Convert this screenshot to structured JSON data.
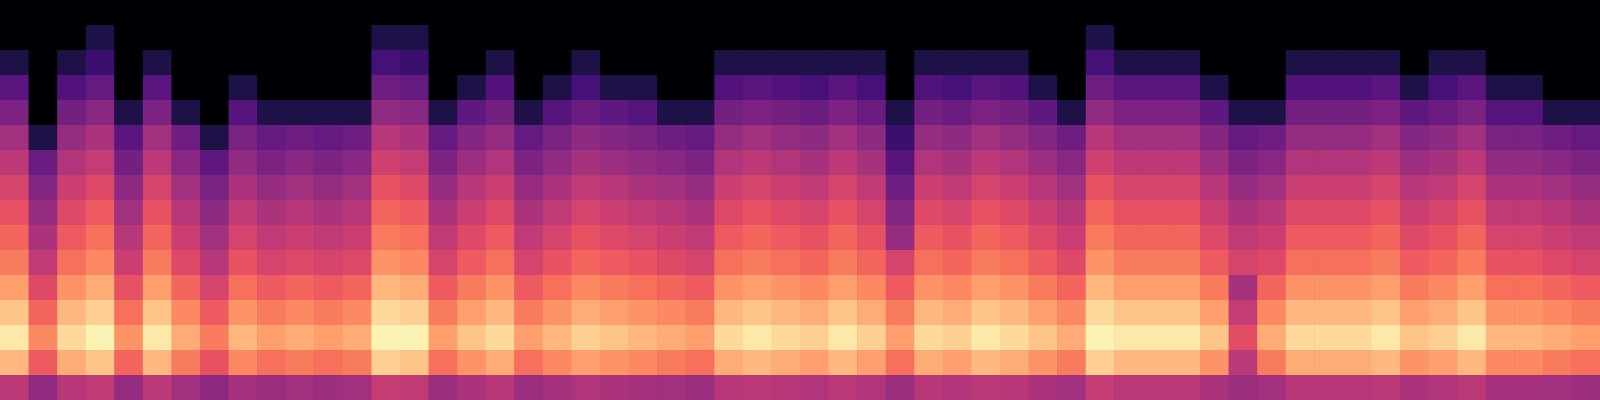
{
  "chart_data": {
    "type": "heatmap",
    "tick_labels": false,
    "zlim": [
      -80,
      0
    ],
    "z": [
      [
        -80,
        -80,
        -80,
        -80,
        -80,
        -80,
        -80,
        -80,
        -80,
        -80,
        -80,
        -80,
        -80,
        -80,
        -80,
        -80,
        -80,
        -80,
        -80,
        -80,
        -80,
        -80,
        -80,
        -80,
        -80,
        -80,
        -80,
        -80,
        -80,
        -80,
        -80,
        -80,
        -80,
        -80,
        -80,
        -80,
        -80,
        -80,
        -80,
        -80,
        -80,
        -80,
        -80,
        -80,
        -80,
        -80,
        -80,
        -80,
        -80,
        -80,
        -80,
        -80,
        -80,
        -80,
        -80,
        -80
      ],
      [
        -80,
        -80,
        -80,
        -70,
        -80,
        -80,
        -80,
        -80,
        -80,
        -80,
        -80,
        -80,
        -80,
        -70,
        -70,
        -80,
        -80,
        -80,
        -80,
        -80,
        -80,
        -80,
        -80,
        -80,
        -80,
        -80,
        -80,
        -80,
        -80,
        -80,
        -80,
        -80,
        -80,
        -80,
        -80,
        -80,
        -80,
        -80,
        -70,
        -80,
        -80,
        -80,
        -80,
        -80,
        -80,
        -80,
        -80,
        -80,
        -80,
        -80,
        -80,
        -80,
        -80,
        -80,
        -80,
        -80
      ],
      [
        -70,
        -80,
        -70,
        -64,
        -80,
        -70,
        -80,
        -80,
        -80,
        -80,
        -80,
        -80,
        -80,
        -62,
        -64,
        -80,
        -80,
        -70,
        -80,
        -80,
        -70,
        -80,
        -80,
        -80,
        -80,
        -70,
        -70,
        -70,
        -70,
        -70,
        -70,
        -80,
        -70,
        -70,
        -70,
        -70,
        -80,
        -80,
        -62,
        -70,
        -70,
        -70,
        -80,
        -80,
        -80,
        -70,
        -70,
        -70,
        -70,
        -80,
        -70,
        -70,
        -80,
        -80,
        -80,
        -80
      ],
      [
        -58,
        -80,
        -60,
        -56,
        -80,
        -58,
        -80,
        -80,
        -70,
        -80,
        -80,
        -80,
        -80,
        -54,
        -56,
        -80,
        -70,
        -60,
        -80,
        -70,
        -62,
        -70,
        -70,
        -80,
        -80,
        -60,
        -58,
        -60,
        -62,
        -58,
        -62,
        -80,
        -60,
        -62,
        -58,
        -60,
        -70,
        -80,
        -54,
        -58,
        -58,
        -58,
        -70,
        -80,
        -80,
        -60,
        -60,
        -60,
        -58,
        -70,
        -62,
        -58,
        -70,
        -70,
        -80,
        -80
      ],
      [
        -51,
        -80,
        -53,
        -49,
        -70,
        -51,
        -70,
        -80,
        -59,
        -70,
        -70,
        -70,
        -70,
        -47,
        -49,
        -70,
        -57,
        -53,
        -70,
        -59,
        -55,
        -57,
        -59,
        -70,
        -70,
        -53,
        -51,
        -53,
        -55,
        -51,
        -55,
        -70,
        -53,
        -55,
        -51,
        -53,
        -57,
        -70,
        -47,
        -51,
        -51,
        -51,
        -57,
        -70,
        -70,
        -53,
        -53,
        -53,
        -51,
        -57,
        -55,
        -51,
        -59,
        -59,
        -70,
        -70
      ],
      [
        -44,
        -70,
        -46,
        -42,
        -58,
        -44,
        -54,
        -70,
        -52,
        -56,
        -54,
        -56,
        -54,
        -40,
        -42,
        -56,
        -50,
        -46,
        -56,
        -52,
        -48,
        -50,
        -52,
        -54,
        -56,
        -46,
        -44,
        -46,
        -48,
        -44,
        -48,
        -64,
        -46,
        -48,
        -44,
        -46,
        -50,
        -54,
        -40,
        -44,
        -44,
        -44,
        -50,
        -56,
        -54,
        -46,
        -46,
        -46,
        -44,
        -50,
        -48,
        -44,
        -52,
        -52,
        -54,
        -56
      ],
      [
        -39,
        -55,
        -41,
        -37,
        -53,
        -39,
        -49,
        -57,
        -47,
        -51,
        -49,
        -51,
        -49,
        -35,
        -37,
        -51,
        -45,
        -41,
        -51,
        -47,
        -43,
        -45,
        -47,
        -49,
        -51,
        -41,
        -39,
        -41,
        -43,
        -39,
        -43,
        -59,
        -41,
        -43,
        -39,
        -41,
        -45,
        -49,
        -35,
        -39,
        -39,
        -39,
        -45,
        -51,
        -49,
        -41,
        -41,
        -41,
        -39,
        -45,
        -43,
        -39,
        -47,
        -47,
        -49,
        -51
      ],
      [
        -34,
        -50,
        -36,
        -32,
        -48,
        -34,
        -44,
        -52,
        -42,
        -46,
        -44,
        -46,
        -44,
        -30,
        -32,
        -46,
        -40,
        -36,
        -46,
        -42,
        -38,
        -40,
        -42,
        -44,
        -46,
        -36,
        -34,
        -36,
        -38,
        -34,
        -38,
        -54,
        -36,
        -38,
        -34,
        -36,
        -40,
        -44,
        -30,
        -34,
        -34,
        -34,
        -40,
        -46,
        -44,
        -36,
        -36,
        -36,
        -34,
        -40,
        -38,
        -34,
        -42,
        -42,
        -44,
        -46
      ],
      [
        -30,
        -46,
        -32,
        -28,
        -44,
        -30,
        -40,
        -48,
        -38,
        -42,
        -40,
        -42,
        -40,
        -26,
        -28,
        -42,
        -36,
        -32,
        -42,
        -38,
        -34,
        -36,
        -38,
        -40,
        -42,
        -32,
        -30,
        -32,
        -34,
        -30,
        -34,
        -50,
        -32,
        -34,
        -30,
        -32,
        -36,
        -40,
        -26,
        -30,
        -30,
        -30,
        -36,
        -42,
        -40,
        -32,
        -32,
        -32,
        -30,
        -36,
        -34,
        -30,
        -38,
        -38,
        -40,
        -42
      ],
      [
        -26,
        -42,
        -28,
        -24,
        -40,
        -26,
        -36,
        -44,
        -34,
        -38,
        -36,
        -38,
        -36,
        -22,
        -24,
        -38,
        -32,
        -28,
        -38,
        -34,
        -30,
        -32,
        -34,
        -36,
        -38,
        -28,
        -26,
        -28,
        -30,
        -26,
        -30,
        -46,
        -28,
        -30,
        -26,
        -28,
        -32,
        -36,
        -22,
        -26,
        -26,
        -26,
        -32,
        -38,
        -36,
        -28,
        -28,
        -28,
        -26,
        -32,
        -30,
        -26,
        -34,
        -34,
        -36,
        -38
      ],
      [
        -22,
        -38,
        -24,
        -20,
        -36,
        -22,
        -32,
        -40,
        -30,
        -34,
        -32,
        -34,
        -32,
        -18,
        -20,
        -34,
        -28,
        -24,
        -34,
        -30,
        -26,
        -28,
        -30,
        -32,
        -34,
        -24,
        -22,
        -24,
        -26,
        -22,
        -26,
        -34,
        -24,
        -26,
        -22,
        -24,
        -28,
        -32,
        -18,
        -22,
        -22,
        -22,
        -28,
        -34,
        -32,
        -24,
        -24,
        -24,
        -22,
        -28,
        -26,
        -22,
        -30,
        -30,
        -32,
        -34
      ],
      [
        -16,
        -32,
        -18,
        -14,
        -30,
        -16,
        -26,
        -34,
        -24,
        -28,
        -26,
        -28,
        -26,
        -12,
        -14,
        -28,
        -22,
        -18,
        -28,
        -24,
        -20,
        -22,
        -24,
        -26,
        -28,
        -18,
        -16,
        -18,
        -20,
        -16,
        -20,
        -28,
        -18,
        -20,
        -16,
        -18,
        -22,
        -26,
        -12,
        -16,
        -16,
        -16,
        -22,
        -43,
        -26,
        -18,
        -18,
        -18,
        -16,
        -22,
        -20,
        -16,
        -24,
        -24,
        -26,
        -28
      ],
      [
        -10,
        -26,
        -12,
        -8,
        -24,
        -10,
        -20,
        -28,
        -18,
        -22,
        -20,
        -22,
        -20,
        -6,
        -8,
        -22,
        -16,
        -12,
        -22,
        -18,
        -14,
        -16,
        -18,
        -20,
        -22,
        -12,
        -10,
        -12,
        -14,
        -10,
        -14,
        -22,
        -12,
        -14,
        -10,
        -12,
        -16,
        -20,
        -6,
        -10,
        -10,
        -10,
        -16,
        -37,
        -20,
        -12,
        -12,
        -12,
        -10,
        -16,
        -14,
        -10,
        -18,
        -18,
        -20,
        -22
      ],
      [
        -4,
        -20,
        -6,
        -2,
        -18,
        -4,
        -14,
        -22,
        -12,
        -16,
        -14,
        -16,
        -14,
        -2,
        -2,
        -16,
        -10,
        -6,
        -16,
        -12,
        -8,
        -10,
        -12,
        -14,
        -16,
        -6,
        -4,
        -6,
        -8,
        -4,
        -8,
        -16,
        -6,
        -8,
        -4,
        -6,
        -10,
        -14,
        -2,
        -4,
        -4,
        -4,
        -10,
        -31,
        -14,
        -6,
        -6,
        -6,
        -4,
        -10,
        -8,
        -4,
        -12,
        -12,
        -14,
        -16
      ],
      [
        -12,
        -28,
        -14,
        -10,
        -26,
        -12,
        -22,
        -30,
        -20,
        -24,
        -22,
        -24,
        -22,
        -8,
        -10,
        -24,
        -18,
        -14,
        -24,
        -20,
        -16,
        -18,
        -20,
        -22,
        -24,
        -14,
        -12,
        -14,
        -16,
        -12,
        -16,
        -24,
        -14,
        -16,
        -12,
        -14,
        -18,
        -22,
        -8,
        -12,
        -12,
        -12,
        -18,
        -39,
        -22,
        -14,
        -14,
        -14,
        -12,
        -18,
        -16,
        -12,
        -20,
        -20,
        -22,
        -24
      ],
      [
        -39,
        -47,
        -40,
        -38,
        -46,
        -39,
        -44,
        -48,
        -43,
        -45,
        -44,
        -45,
        -44,
        -37,
        -38,
        -45,
        -42,
        -40,
        -45,
        -43,
        -41,
        -42,
        -43,
        -44,
        -45,
        -40,
        -39,
        -40,
        -41,
        -39,
        -41,
        -45,
        -40,
        -41,
        -39,
        -40,
        -42,
        -44,
        -37,
        -39,
        -39,
        -39,
        -42,
        -45,
        -44,
        -40,
        -40,
        -40,
        -39,
        -42,
        -41,
        -39,
        -43,
        -43,
        -44,
        -45
      ]
    ]
  }
}
